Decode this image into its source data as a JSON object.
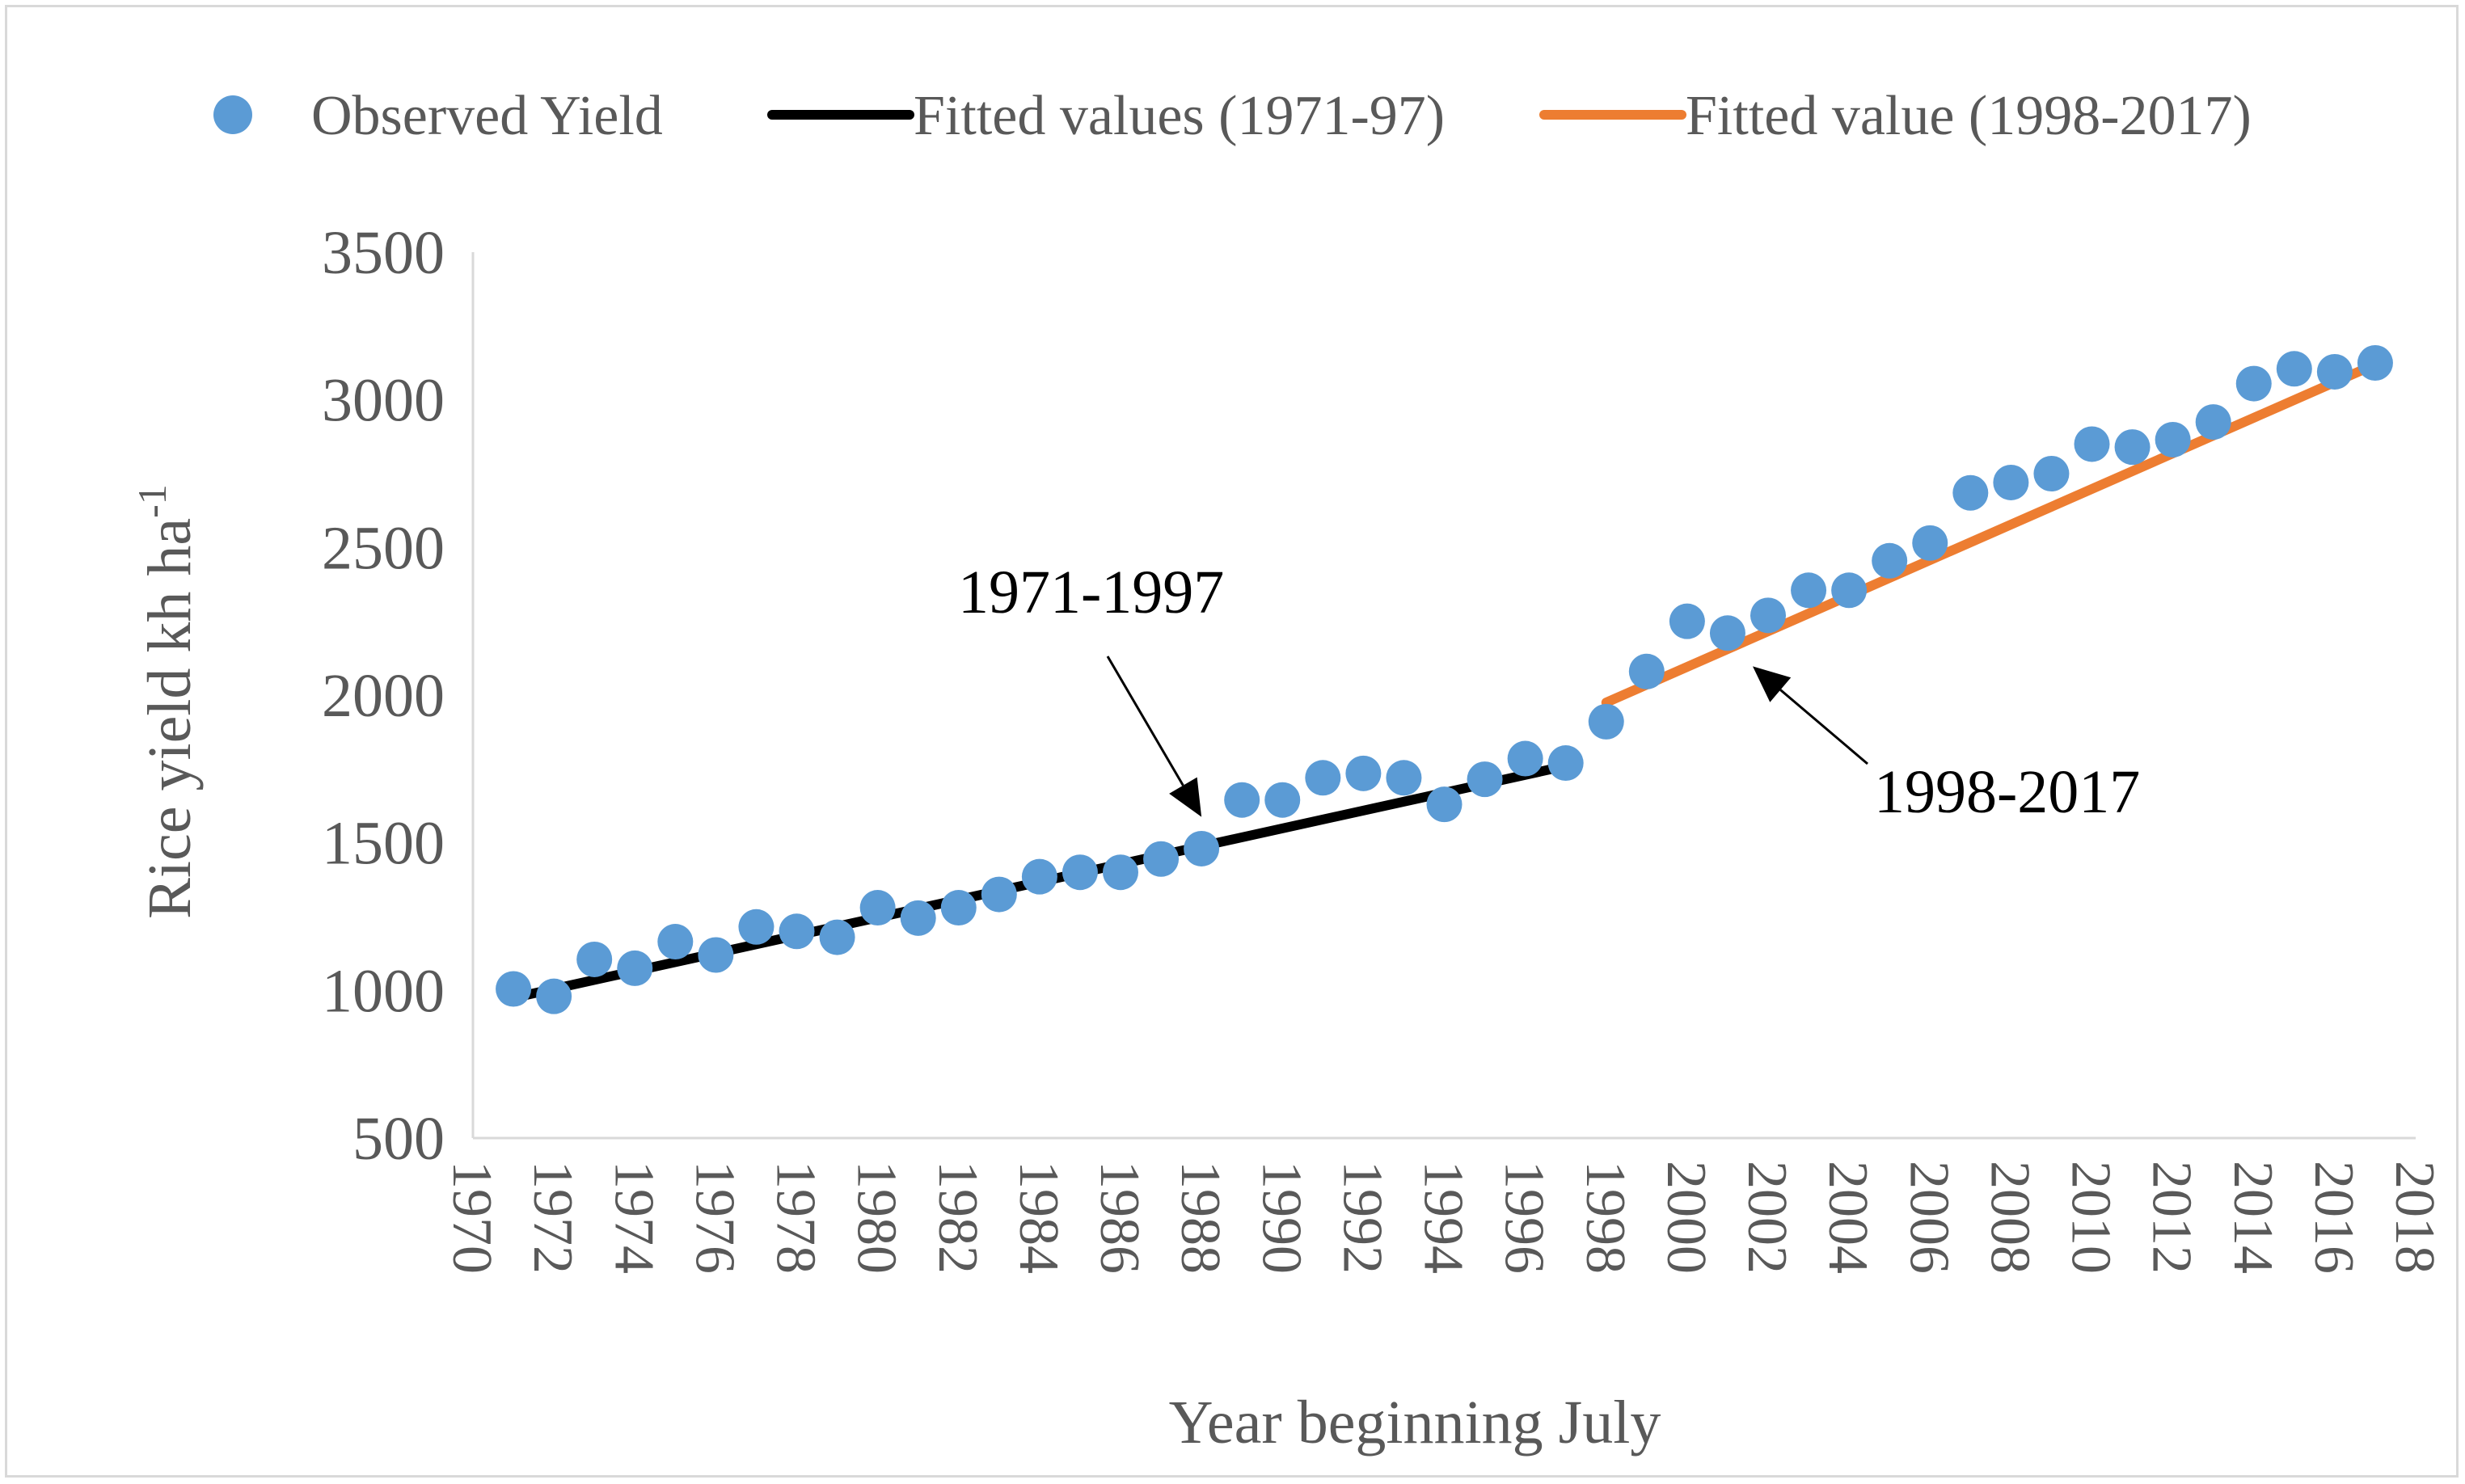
{
  "chart_data": {
    "type": "scatter",
    "title": "",
    "xlabel": "Year beginning July",
    "ylabel": "Rice yield kh ha",
    "ylabel_superscript": "-1",
    "xlim": [
      1970,
      2018
    ],
    "ylim": [
      500,
      3500
    ],
    "x_ticks": [
      "1970",
      "1972",
      "1974",
      "1976",
      "1978",
      "1980",
      "1982",
      "1984",
      "1986",
      "1988",
      "1990",
      "1992",
      "1994",
      "1996",
      "1998",
      "2000",
      "2002",
      "2004",
      "2006",
      "2008",
      "2010",
      "2012",
      "2014",
      "2016",
      "2018"
    ],
    "y_ticks": [
      "500",
      "1000",
      "1500",
      "2000",
      "2500",
      "3000",
      "3500"
    ],
    "legend": {
      "placement": "top",
      "entries": [
        "Observed Yield",
        "Fitted values (1971-97)",
        "Fitted value (1998-2017)"
      ]
    },
    "series": [
      {
        "name": "Observed Yield",
        "kind": "scatter",
        "color": "#5b9bd5",
        "x": [
          1971,
          1972,
          1973,
          1974,
          1975,
          1976,
          1977,
          1978,
          1979,
          1980,
          1981,
          1982,
          1983,
          1984,
          1985,
          1986,
          1987,
          1988,
          1989,
          1990,
          1991,
          1992,
          1993,
          1994,
          1995,
          1996,
          1997,
          1998,
          1999,
          2000,
          2001,
          2002,
          2003,
          2004,
          2005,
          2006,
          2007,
          2008,
          2009,
          2010,
          2011,
          2012,
          2013,
          2014,
          2015,
          2016,
          2017
        ],
        "y": [
          1005,
          980,
          1105,
          1075,
          1165,
          1120,
          1215,
          1200,
          1180,
          1280,
          1245,
          1280,
          1325,
          1385,
          1400,
          1400,
          1445,
          1480,
          1645,
          1645,
          1720,
          1735,
          1720,
          1630,
          1715,
          1785,
          1770,
          1910,
          2080,
          2250,
          2210,
          2270,
          2355,
          2355,
          2455,
          2515,
          2685,
          2720,
          2750,
          2850,
          2840,
          2865,
          2925,
          3055,
          3105,
          3095,
          3125
        ]
      },
      {
        "name": "Fitted values (1971-97)",
        "kind": "line",
        "color": "#000000",
        "x": [
          1971,
          1997
        ],
        "y": [
          975,
          1760
        ]
      },
      {
        "name": "Fitted value (1998-2017)",
        "kind": "line",
        "color": "#ed7d31",
        "x": [
          1998,
          2017
        ],
        "y": [
          1975,
          3120
        ]
      }
    ],
    "annotations": [
      {
        "text": "1971-1997",
        "arrow_to": [
          1988,
          1555
        ]
      },
      {
        "text": "1998-2017",
        "arrow_to": [
          2001.5,
          2125
        ]
      }
    ]
  }
}
